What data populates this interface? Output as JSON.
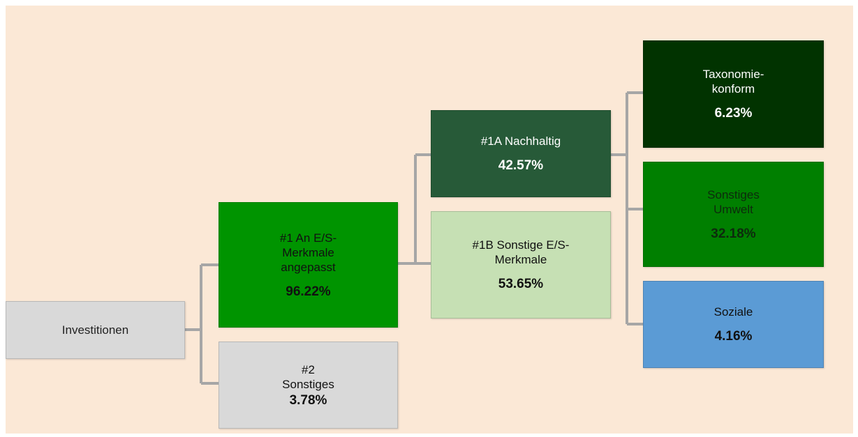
{
  "nodes": [
    {
      "label": "Investitionen"
    },
    {
      "label": "#1 An E/S-\nMerkmale\nangepasst",
      "value": "96.22%"
    },
    {
      "label": "#2\nSonstiges",
      "value": "3.78%"
    },
    {
      "label": "#1A Nachhaltig",
      "value": "42.57%"
    },
    {
      "label": "#1B Sonstige E/S-\nMerkmale",
      "value": "53.65%"
    },
    {
      "label": "Taxonomie-\nkonform",
      "value": "6.23%"
    },
    {
      "label": "Sonstiges\nUmwelt",
      "value": "32.18%"
    },
    {
      "label": "Soziale",
      "value": "4.16%"
    }
  ]
}
